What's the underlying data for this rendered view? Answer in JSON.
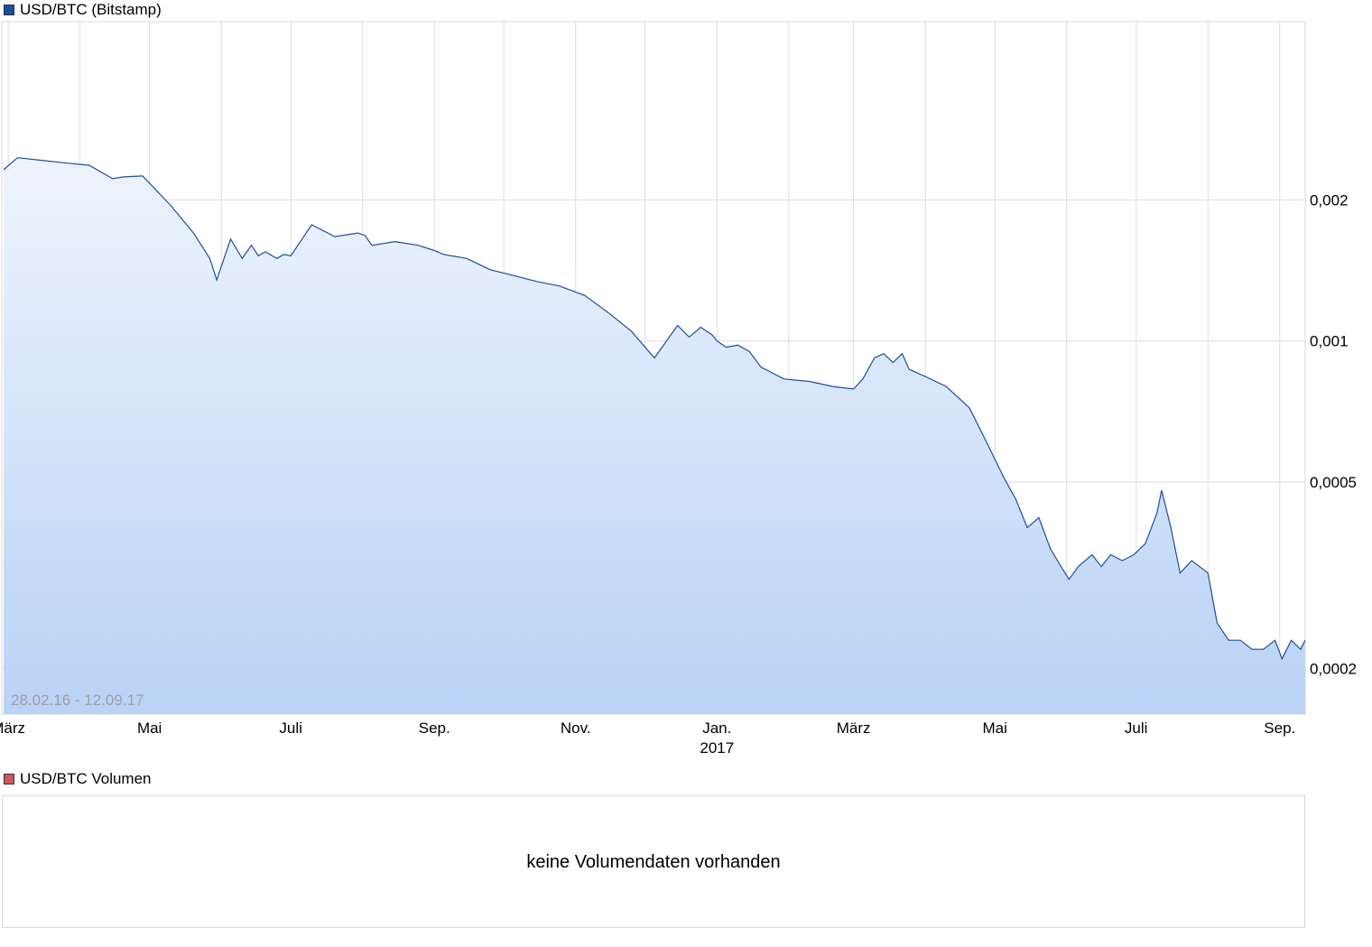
{
  "main_legend": {
    "label": "USD/BTC (Bitstamp)",
    "color": "#1a4fa0"
  },
  "volume_legend": {
    "label": "USD/BTC Volumen",
    "color": "#c9595a"
  },
  "volume_panel": {
    "empty_text": "keine Volumendaten vorhanden"
  },
  "colors": {
    "line": "#1a4fa0",
    "fill_top": "#eef4fd",
    "fill_bottom": "#b9d2f6",
    "grid": "#dddddd"
  },
  "chart_data": {
    "type": "area",
    "title": "USD/BTC (Bitstamp)",
    "date_range_label": "28.02.16 - 12.09.17",
    "y_scale": "log",
    "grid": true,
    "xlim": [
      "2016-02-28",
      "2017-09-12"
    ],
    "ylim": [
      0.00016,
      0.0048
    ],
    "x_ticks": [
      {
        "date": "2016-03-01",
        "label": "März"
      },
      {
        "date": "2016-05-01",
        "label": "Mai"
      },
      {
        "date": "2016-07-01",
        "label": "Juli"
      },
      {
        "date": "2016-09-01",
        "label": "Sep."
      },
      {
        "date": "2016-11-01",
        "label": "Nov."
      },
      {
        "date": "2017-01-01",
        "label": "Jan.",
        "sublabel": "2017"
      },
      {
        "date": "2017-03-01",
        "label": "März"
      },
      {
        "date": "2017-05-01",
        "label": "Mai"
      },
      {
        "date": "2017-07-01",
        "label": "Juli"
      },
      {
        "date": "2017-09-01",
        "label": "Sep."
      }
    ],
    "y_ticks": [
      {
        "value": 0.002,
        "label": "0,002"
      },
      {
        "value": 0.001,
        "label": "0,001"
      },
      {
        "value": 0.0005,
        "label": "0,0005"
      },
      {
        "value": 0.0002,
        "label": "0,0002"
      }
    ],
    "series": [
      {
        "x": [
          "2016-02-28",
          "2016-03-05",
          "2016-03-15",
          "2016-03-25",
          "2016-04-05",
          "2016-04-15",
          "2016-04-20",
          "2016-04-28",
          "2016-05-10",
          "2016-05-20",
          "2016-05-27",
          "2016-05-30",
          "2016-06-05",
          "2016-06-10",
          "2016-06-14",
          "2016-06-17",
          "2016-06-20",
          "2016-06-25",
          "2016-06-28",
          "2016-07-01",
          "2016-07-10",
          "2016-07-20",
          "2016-07-30",
          "2016-08-02",
          "2016-08-05",
          "2016-08-15",
          "2016-08-25",
          "2016-09-01",
          "2016-09-05",
          "2016-09-15",
          "2016-09-25",
          "2016-10-05",
          "2016-10-15",
          "2016-10-25",
          "2016-11-05",
          "2016-11-15",
          "2016-11-25",
          "2016-12-05",
          "2016-12-15",
          "2016-12-20",
          "2016-12-25",
          "2016-12-30",
          "2017-01-01",
          "2017-01-05",
          "2017-01-10",
          "2017-01-15",
          "2017-01-20",
          "2017-01-30",
          "2017-02-10",
          "2017-02-20",
          "2017-03-01",
          "2017-03-05",
          "2017-03-10",
          "2017-03-14",
          "2017-03-18",
          "2017-03-22",
          "2017-03-25",
          "2017-04-01",
          "2017-04-10",
          "2017-04-20",
          "2017-04-28",
          "2017-05-05",
          "2017-05-10",
          "2017-05-15",
          "2017-05-20",
          "2017-05-25",
          "2017-05-28",
          "2017-06-02",
          "2017-06-06",
          "2017-06-12",
          "2017-06-16",
          "2017-06-20",
          "2017-06-25",
          "2017-06-30",
          "2017-07-05",
          "2017-07-10",
          "2017-07-12",
          "2017-07-16",
          "2017-07-20",
          "2017-07-25",
          "2017-08-01",
          "2017-08-05",
          "2017-08-10",
          "2017-08-15",
          "2017-08-20",
          "2017-08-25",
          "2017-08-30",
          "2017-09-02",
          "2017-09-06",
          "2017-09-10",
          "2017-09-12"
        ],
        "y": [
          0.00232,
          0.00246,
          0.00243,
          0.0024,
          0.00237,
          0.00222,
          0.00224,
          0.00225,
          0.00195,
          0.0017,
          0.0015,
          0.00135,
          0.00165,
          0.0015,
          0.0016,
          0.00152,
          0.00155,
          0.0015,
          0.00153,
          0.00152,
          0.00177,
          0.00167,
          0.0017,
          0.00168,
          0.0016,
          0.00163,
          0.0016,
          0.00156,
          0.00153,
          0.0015,
          0.00142,
          0.00138,
          0.00134,
          0.00131,
          0.00125,
          0.00115,
          0.00105,
          0.00092,
          0.00108,
          0.00102,
          0.00107,
          0.00103,
          0.001,
          0.00097,
          0.00098,
          0.00095,
          0.00088,
          0.00083,
          0.00082,
          0.0008,
          0.00079,
          0.00083,
          0.00092,
          0.00094,
          0.0009,
          0.00094,
          0.00087,
          0.00084,
          0.0008,
          0.00072,
          0.0006,
          0.00051,
          0.00046,
          0.0004,
          0.00042,
          0.00036,
          0.00034,
          0.00031,
          0.00033,
          0.00035,
          0.00033,
          0.00035,
          0.00034,
          0.00035,
          0.00037,
          0.00043,
          0.00048,
          0.0004,
          0.00032,
          0.00034,
          0.00032,
          0.00025,
          0.00023,
          0.00023,
          0.00022,
          0.00022,
          0.00023,
          0.00021,
          0.00023,
          0.00022,
          0.00023
        ]
      }
    ]
  }
}
